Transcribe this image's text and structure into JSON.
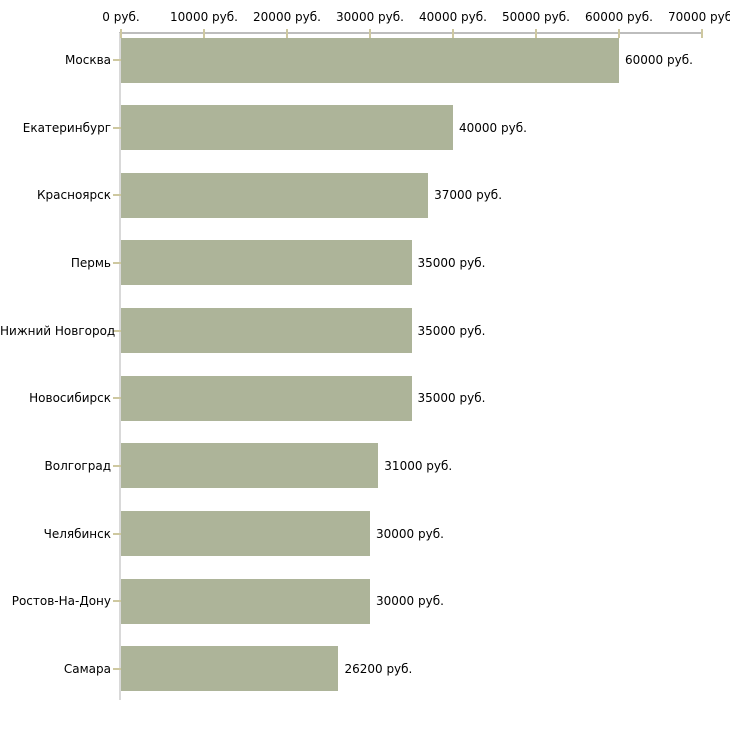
{
  "chart_data": {
    "type": "bar",
    "orientation": "horizontal",
    "title": "",
    "categories": [
      "Москва",
      "Екатеринбург",
      "Красноярск",
      "Пермь",
      "Нижний Новгород",
      "Новосибирск",
      "Волгоград",
      "Челябинск",
      "Ростов-На-Дону",
      "Самара"
    ],
    "values": [
      60000,
      40000,
      37000,
      35000,
      35000,
      35000,
      31000,
      30000,
      30000,
      26200
    ],
    "value_labels": [
      "60000 руб.",
      "40000 руб.",
      "37000 руб.",
      "35000 руб.",
      "35000 руб.",
      "35000 руб.",
      "31000 руб.",
      "30000 руб.",
      "30000 руб.",
      "26200 руб."
    ],
    "x_axis": {
      "position": "top",
      "min": 0,
      "max": 70000,
      "ticks": [
        0,
        10000,
        20000,
        30000,
        40000,
        50000,
        60000,
        70000
      ],
      "tick_labels": [
        "0 руб.",
        "10000 руб.",
        "20000 руб.",
        "30000 руб.",
        "40000 руб.",
        "50000 руб.",
        "60000 руб.",
        "70000 руб."
      ]
    },
    "grid": false,
    "legend": false,
    "colors": {
      "bar": "#adb499",
      "tick": "#cec8a0",
      "x_axis_line": "#bdbdbd",
      "y_axis_line": "#d9d9d9",
      "text": "#000000",
      "background": "#ffffff"
    }
  }
}
